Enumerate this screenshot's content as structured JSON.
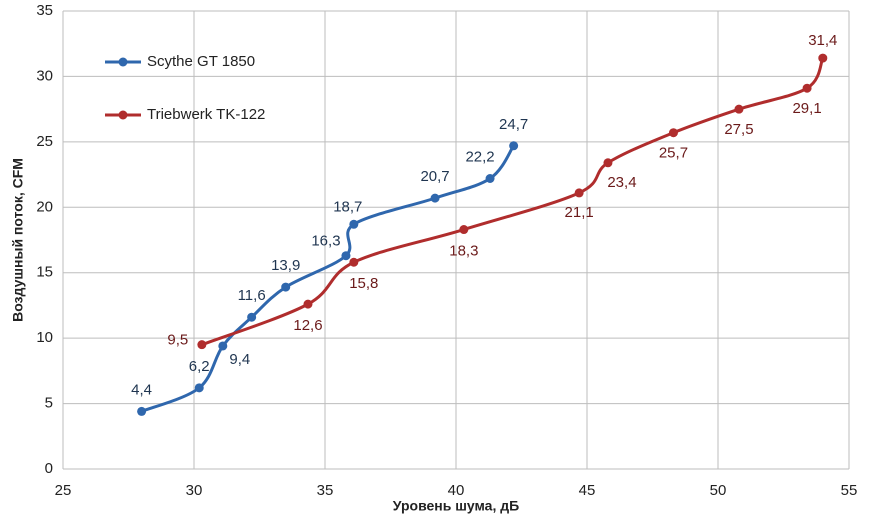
{
  "chart_data": {
    "type": "line",
    "x_label": "Уровень шума, дБ",
    "y_label": "Воздушный поток, CFM",
    "xlim": [
      25,
      55
    ],
    "xticks": [
      25,
      30,
      35,
      40,
      45,
      50,
      55
    ],
    "ylim": [
      0,
      35
    ],
    "yticks": [
      0,
      5,
      10,
      15,
      20,
      25,
      30,
      35
    ],
    "grid": true,
    "legend": "upper left",
    "series": [
      {
        "name": "Scythe GT 1850",
        "color": "#2f67ad",
        "x": [
          28.0,
          30.2,
          31.1,
          32.2,
          33.5,
          35.8,
          36.1,
          39.2,
          41.3,
          42.2
        ],
        "values": [
          4.4,
          6.2,
          9.4,
          11.6,
          13.9,
          16.3,
          18.7,
          20.7,
          22.2,
          24.7
        ],
        "value_labels": [
          "4,4",
          "6,2",
          "9,4",
          "11,6",
          "13,9",
          "16,3",
          "18,7",
          "20,7",
          "22,2",
          "24,7"
        ]
      },
      {
        "name": "Triebwerk TK-122",
        "color": "#b02d2d",
        "x": [
          30.3,
          34.35,
          36.1,
          40.3,
          44.7,
          45.8,
          48.3,
          50.8,
          53.4,
          54.0
        ],
        "values": [
          9.5,
          12.6,
          15.8,
          18.3,
          21.1,
          23.4,
          25.7,
          27.5,
          29.1,
          31.4
        ],
        "value_labels": [
          "9,5",
          "12,6",
          "15,8",
          "18,3",
          "21,1",
          "23,4",
          "25,7",
          "27,5",
          "29,1",
          "31,4"
        ]
      }
    ]
  }
}
